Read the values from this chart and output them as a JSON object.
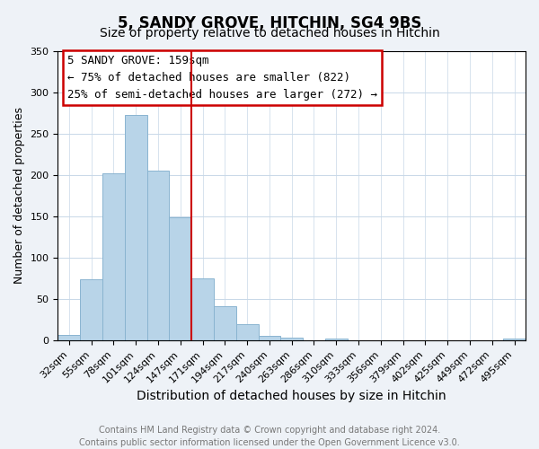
{
  "title": "5, SANDY GROVE, HITCHIN, SG4 9BS",
  "subtitle": "Size of property relative to detached houses in Hitchin",
  "xlabel": "Distribution of detached houses by size in Hitchin",
  "ylabel": "Number of detached properties",
  "bar_labels": [
    "32sqm",
    "55sqm",
    "78sqm",
    "101sqm",
    "124sqm",
    "147sqm",
    "171sqm",
    "194sqm",
    "217sqm",
    "240sqm",
    "263sqm",
    "286sqm",
    "310sqm",
    "333sqm",
    "356sqm",
    "379sqm",
    "402sqm",
    "425sqm",
    "449sqm",
    "472sqm",
    "495sqm"
  ],
  "bar_heights": [
    7,
    74,
    202,
    273,
    205,
    149,
    75,
    41,
    20,
    6,
    4,
    0,
    2,
    0,
    0,
    0,
    0,
    0,
    0,
    0,
    2
  ],
  "bar_color": "#b8d4e8",
  "bar_edge_color": "#8ab4d0",
  "annotation_line_color": "#cc0000",
  "annotation_box_text_line1": "5 SANDY GROVE: 159sqm",
  "annotation_box_text_line2": "← 75% of detached houses are smaller (822)",
  "annotation_box_text_line3": "25% of semi-detached houses are larger (272) →",
  "annotation_box_color": "#ffffff",
  "annotation_box_edge_color": "#cc0000",
  "ylim": [
    0,
    350
  ],
  "yticks": [
    0,
    50,
    100,
    150,
    200,
    250,
    300,
    350
  ],
  "footer_line1": "Contains HM Land Registry data © Crown copyright and database right 2024.",
  "footer_line2": "Contains public sector information licensed under the Open Government Licence v3.0.",
  "background_color": "#eef2f7",
  "plot_background_color": "#ffffff",
  "grid_color": "#c8d8e8",
  "title_fontsize": 12,
  "subtitle_fontsize": 10,
  "xlabel_fontsize": 10,
  "ylabel_fontsize": 9,
  "footer_fontsize": 7,
  "annotation_fontsize": 9,
  "tick_fontsize": 8
}
